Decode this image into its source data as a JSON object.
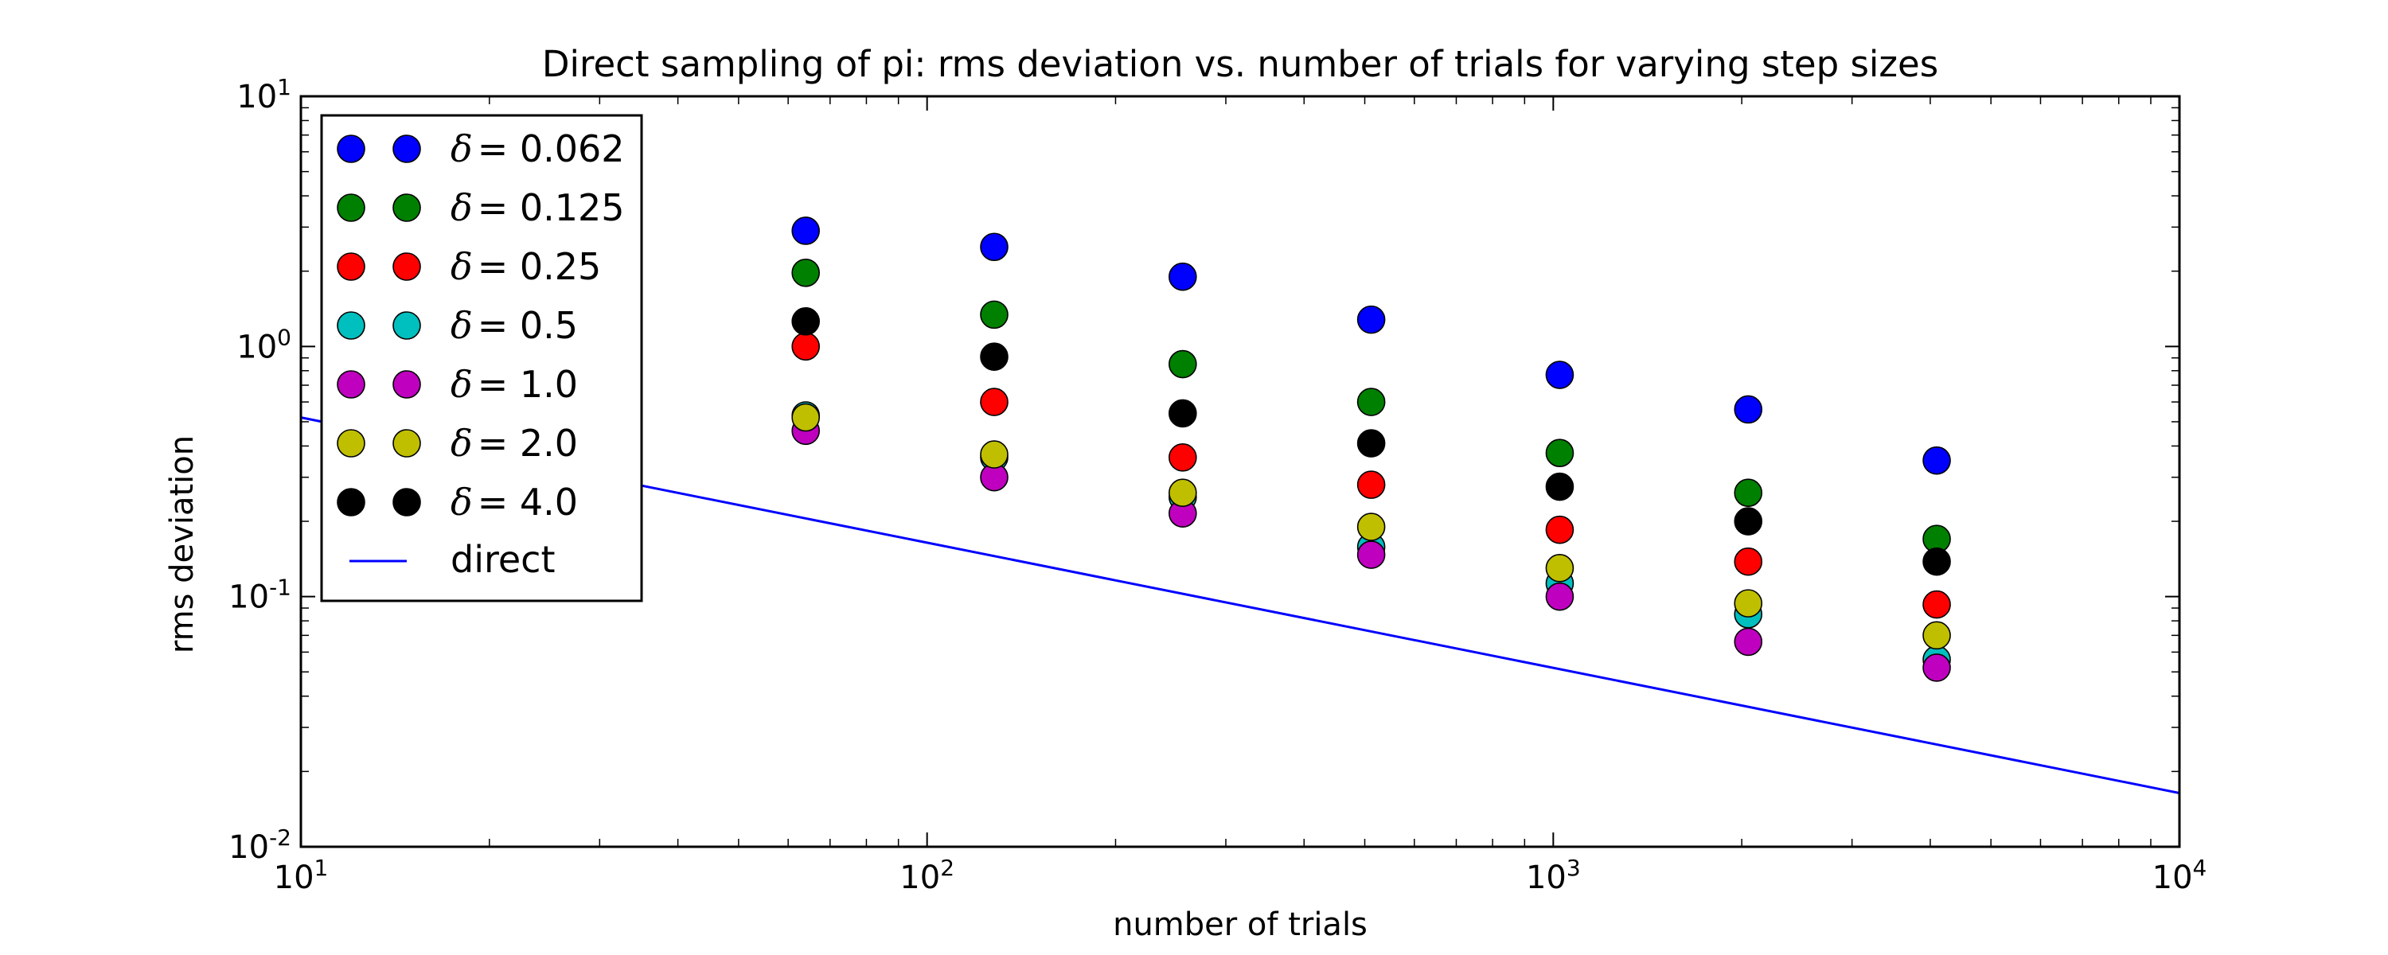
{
  "chart_data": {
    "type": "scatter",
    "title": "Direct sampling of pi: rms deviation vs. number of trials for varying step sizes",
    "xlabel": "number of trials",
    "ylabel": "rms deviation",
    "xscale": "log",
    "yscale": "log",
    "xlim": [
      10,
      10000
    ],
    "ylim": [
      0.01,
      10
    ],
    "x_ticks": [
      {
        "value": 10,
        "base": "10",
        "exp": "1"
      },
      {
        "value": 100,
        "base": "10",
        "exp": "2"
      },
      {
        "value": 1000,
        "base": "10",
        "exp": "3"
      },
      {
        "value": 10000,
        "base": "10",
        "exp": "4"
      }
    ],
    "y_ticks": [
      {
        "value": 0.01,
        "base": "10",
        "exp": "-2"
      },
      {
        "value": 0.1,
        "base": "10",
        "exp": "-1"
      },
      {
        "value": 1,
        "base": "10",
        "exp": "0"
      },
      {
        "value": 10,
        "base": "10",
        "exp": "1"
      }
    ],
    "grid": false,
    "legend_position": "upper-left",
    "x": [
      64,
      128,
      256,
      512,
      1024,
      2048,
      4096
    ],
    "series": [
      {
        "name": "δ = 0.062",
        "symbol": "δ",
        "value_text": "= 0.062",
        "color": "#0000ff",
        "marker": "circle",
        "values": [
          2.9,
          2.5,
          1.9,
          1.28,
          0.77,
          0.56,
          0.35
        ]
      },
      {
        "name": "δ = 0.125",
        "symbol": "δ",
        "value_text": "= 0.125",
        "color": "#008000",
        "marker": "circle",
        "values": [
          1.97,
          1.34,
          0.85,
          0.6,
          0.375,
          0.26,
          0.17
        ]
      },
      {
        "name": "δ = 0.25",
        "symbol": "δ",
        "value_text": "= 0.25",
        "color": "#ff0000",
        "marker": "circle",
        "values": [
          1.0,
          0.6,
          0.36,
          0.28,
          0.185,
          0.138,
          0.093
        ]
      },
      {
        "name": "δ = 0.5",
        "symbol": "δ",
        "value_text": "= 0.5",
        "color": "#00bfbf",
        "marker": "circle",
        "values": [
          0.53,
          0.36,
          0.25,
          0.158,
          0.113,
          0.085,
          0.056
        ]
      },
      {
        "name": "δ = 1.0",
        "symbol": "δ",
        "value_text": "= 1.0",
        "color": "#bf00bf",
        "marker": "circle",
        "values": [
          0.46,
          0.3,
          0.215,
          0.147,
          0.1,
          0.066,
          0.052
        ]
      },
      {
        "name": "δ = 2.0",
        "symbol": "δ",
        "value_text": "= 2.0",
        "color": "#bfbf00",
        "marker": "circle",
        "values": [
          0.52,
          0.37,
          0.26,
          0.19,
          0.13,
          0.094,
          0.07
        ]
      },
      {
        "name": "δ = 4.0",
        "symbol": "δ",
        "value_text": "= 4.0",
        "color": "#000000",
        "marker": "circle",
        "values": [
          1.26,
          0.91,
          0.54,
          0.41,
          0.275,
          0.2,
          0.138
        ]
      }
    ],
    "lines": [
      {
        "name": "direct",
        "color": "#0000ff",
        "x": [
          10,
          10000
        ],
        "values": [
          0.52,
          0.0164
        ]
      }
    ]
  }
}
